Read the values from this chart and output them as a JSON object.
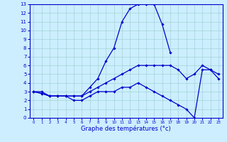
{
  "title": "",
  "xlabel": "Graphe des températures (°c)",
  "ylabel": "",
  "background_color": "#cceeff",
  "line_color": "#0000cc",
  "xlim": [
    -0.5,
    23.5
  ],
  "ylim": [
    0,
    13
  ],
  "xticks": [
    0,
    1,
    2,
    3,
    4,
    5,
    6,
    7,
    8,
    9,
    10,
    11,
    12,
    13,
    14,
    15,
    16,
    17,
    18,
    19,
    20,
    21,
    22,
    23
  ],
  "yticks": [
    0,
    1,
    2,
    3,
    4,
    5,
    6,
    7,
    8,
    9,
    10,
    11,
    12,
    13
  ],
  "series": {
    "temp_max": {
      "x": [
        0,
        1,
        2,
        3,
        4,
        5,
        6,
        7,
        8,
        9,
        10,
        11,
        12,
        13,
        14,
        15,
        16,
        17,
        18,
        19,
        20,
        21,
        22,
        23
      ],
      "y": [
        3,
        3,
        2.5,
        2.5,
        2.5,
        2.5,
        2.5,
        3.5,
        4.5,
        6.5,
        8,
        11,
        12.5,
        13,
        13,
        13,
        10.7,
        7.5,
        null,
        null,
        null,
        null,
        null,
        null
      ]
    },
    "temp_mean": {
      "x": [
        0,
        1,
        2,
        3,
        4,
        5,
        6,
        7,
        8,
        9,
        10,
        11,
        12,
        13,
        14,
        15,
        16,
        17,
        18,
        19,
        20,
        21,
        22,
        23
      ],
      "y": [
        3,
        2.8,
        2.5,
        2.5,
        2.5,
        2.5,
        2.5,
        3,
        3.5,
        4,
        4.5,
        5,
        5.5,
        6,
        6,
        6,
        6,
        6,
        5.5,
        4.5,
        5,
        6,
        5.5,
        5
      ]
    },
    "temp_min": {
      "x": [
        0,
        1,
        2,
        3,
        4,
        5,
        6,
        7,
        8,
        9,
        10,
        11,
        12,
        13,
        14,
        15,
        16,
        17,
        18,
        19,
        20,
        21,
        22,
        23
      ],
      "y": [
        3,
        2.8,
        2.5,
        2.5,
        2.5,
        2,
        2,
        2.5,
        3,
        3,
        3,
        3.5,
        3.5,
        4,
        3.5,
        3,
        2.5,
        2,
        1.5,
        1,
        0,
        5.5,
        5.5,
        4.5
      ]
    }
  }
}
